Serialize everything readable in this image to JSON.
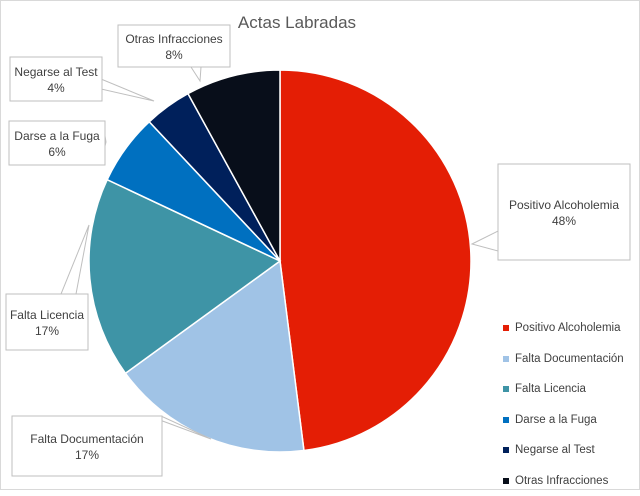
{
  "chart_data": {
    "type": "pie",
    "title": "Actas Labradas",
    "categories": [
      "Positivo Alcoholemia",
      "Falta Documentación",
      "Falta Licencia",
      "Darse a la Fuga",
      "Negarse al Test",
      "Otras Infracciones"
    ],
    "values": [
      48,
      17,
      17,
      6,
      4,
      8
    ],
    "data_labels": [
      "48%",
      "17%",
      "17%",
      "6%",
      "4%",
      "8%"
    ],
    "colors": [
      "#e41e05",
      "#a0c3e6",
      "#3e94a6",
      "#0070c0",
      "#00205b",
      "#080e1a"
    ],
    "legend_position": "bottom-right",
    "start_angle_deg": 0,
    "direction": "clockwise"
  }
}
